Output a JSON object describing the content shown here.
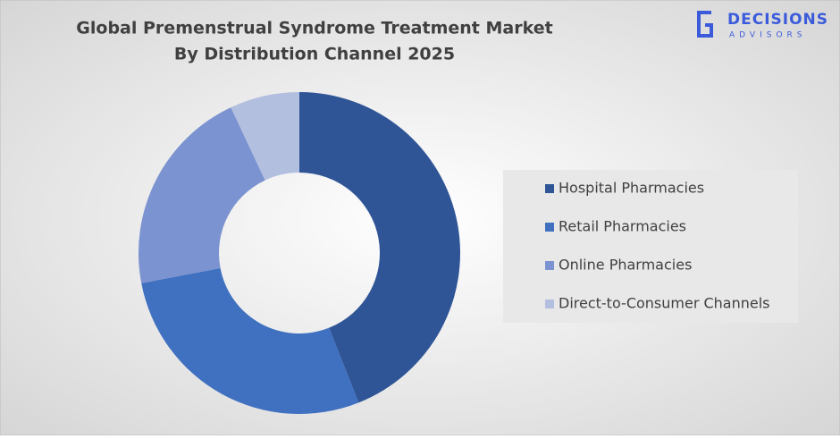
{
  "chart_data": {
    "type": "donut",
    "title": "Global Premenstrual Syndrome Treatment Market",
    "subtitle": "By Distribution Channel 2025",
    "categories": [
      "Hospital Pharmacies",
      "Retail Pharmacies",
      "Online Pharmacies",
      "Direct-to-Consumer Channels"
    ],
    "values": [
      44,
      28,
      21,
      7
    ],
    "colors": [
      "#2f5597",
      "#4070c0",
      "#7b93d0",
      "#b3bfdf"
    ],
    "legend": "right"
  },
  "logo": {
    "name": "DECISIONS",
    "tagline": "ADVISORS"
  }
}
